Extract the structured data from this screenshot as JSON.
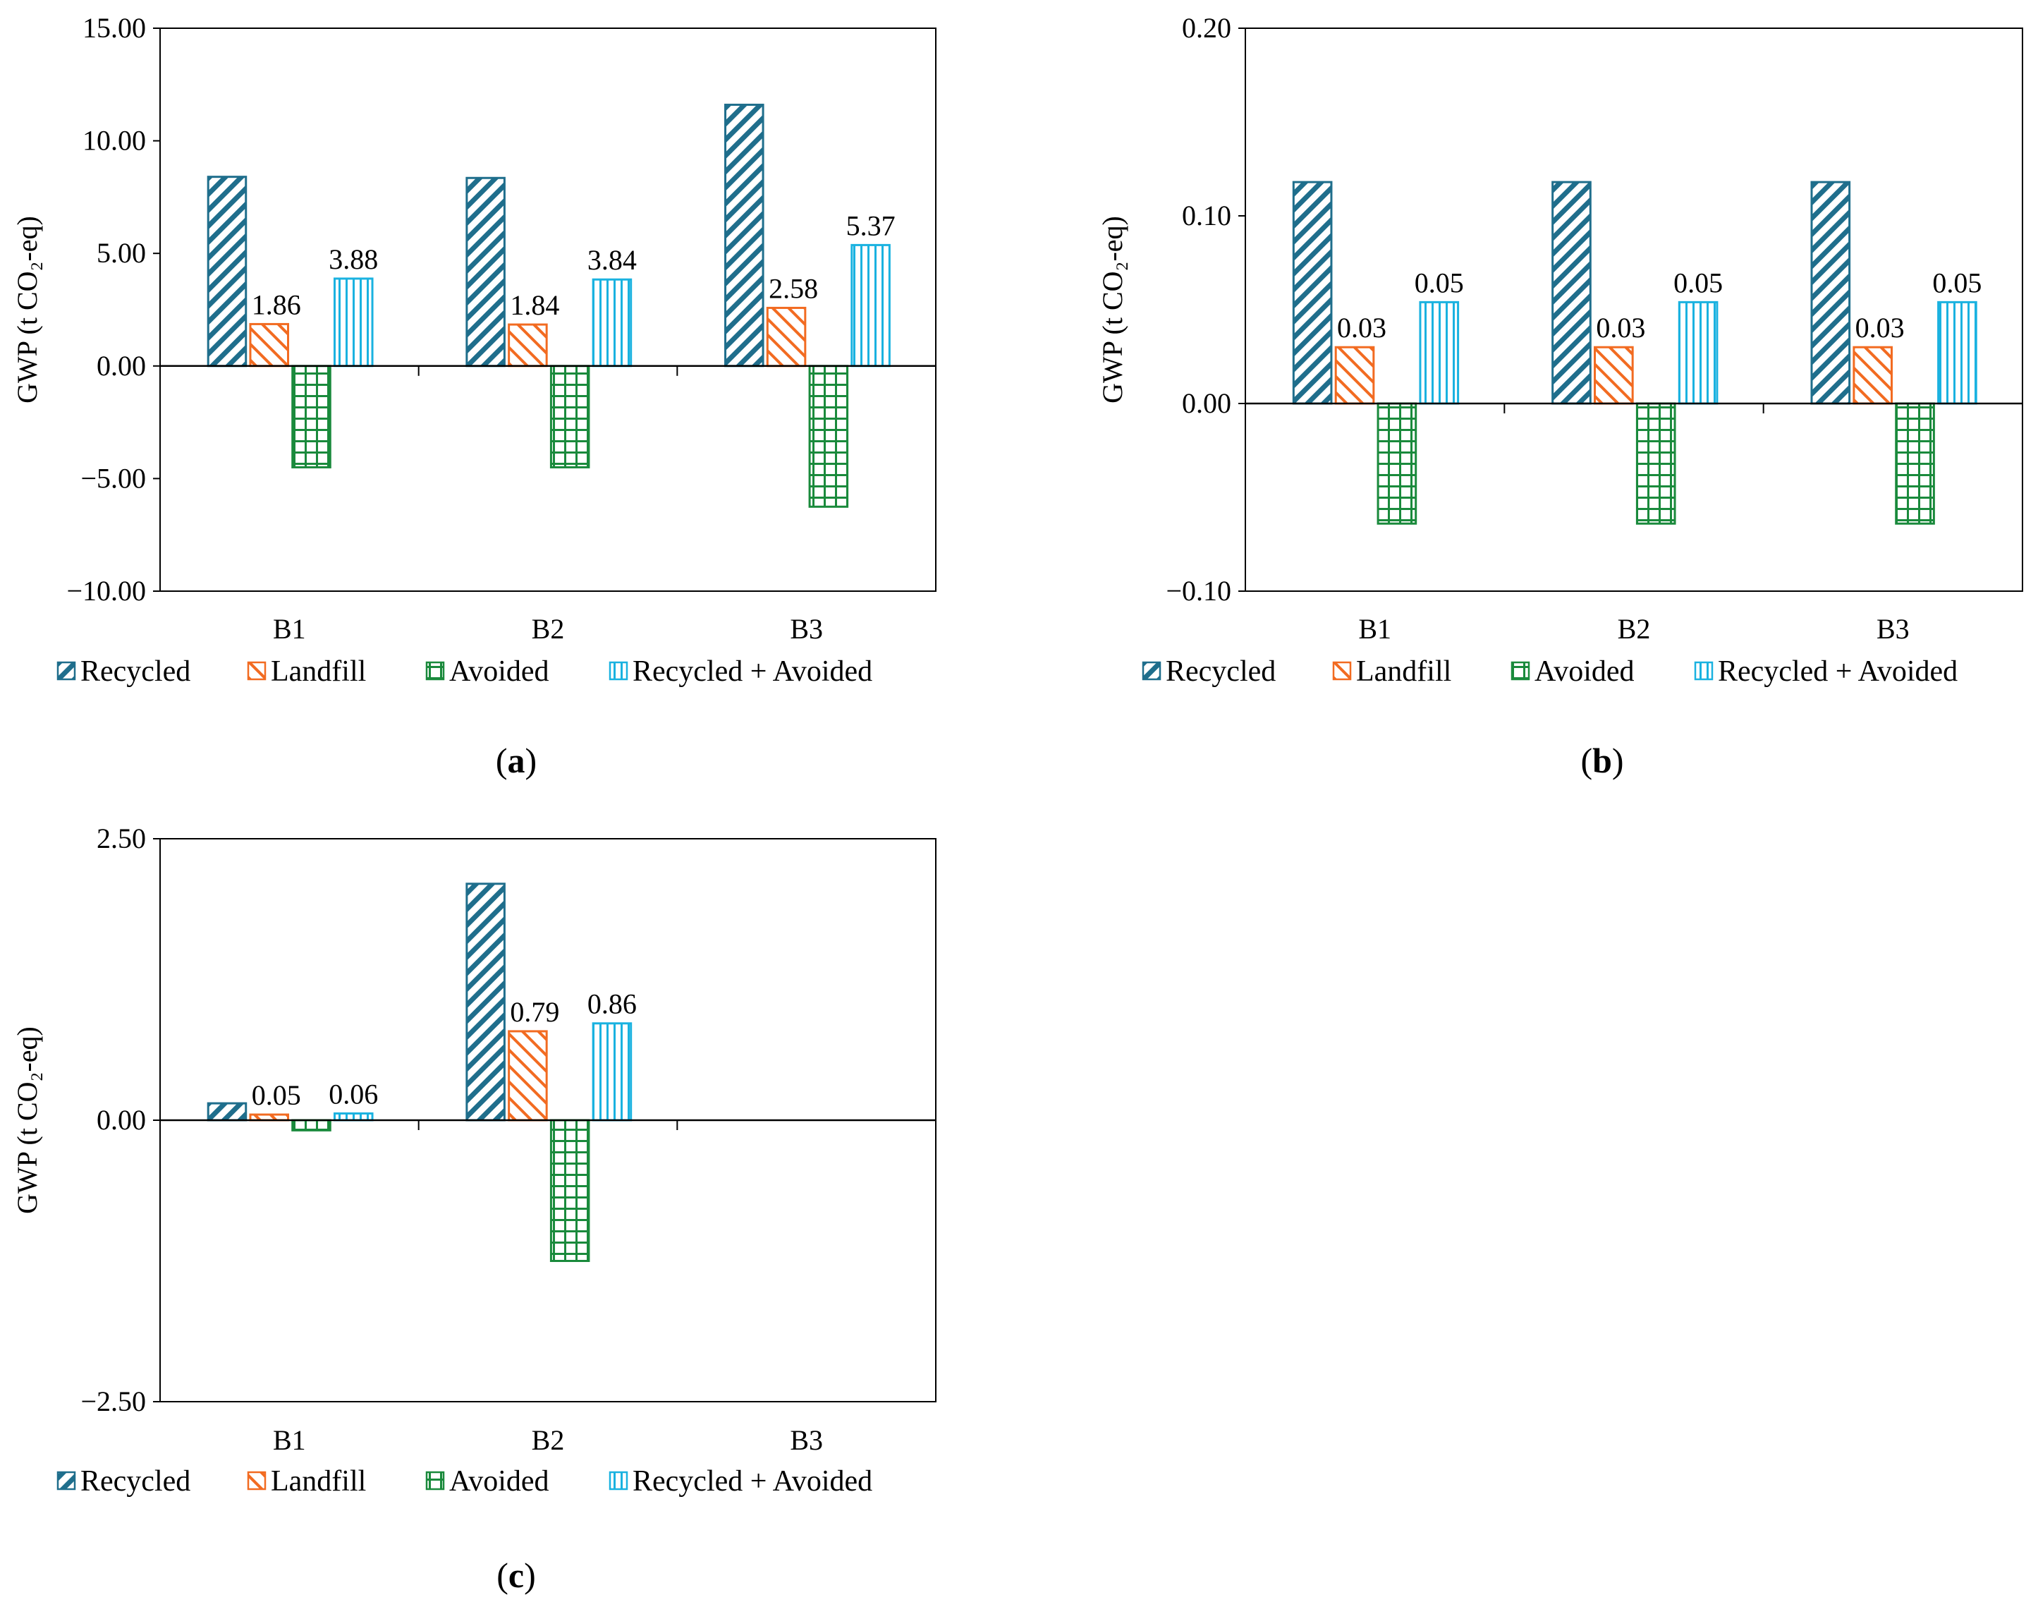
{
  "colors": {
    "Recycled": "#1f6e8c",
    "Landfill": "#f26b21",
    "Avoided": "#1a8a3c",
    "Recycled + Avoided": "#1ab2e0"
  },
  "chart_data": [
    {
      "id": "a",
      "type": "bar",
      "caption": "a",
      "ylabel": "GWP (t CO₂-eq)",
      "xlabel": "",
      "ylim": [
        -10,
        15
      ],
      "yticks": [
        -10,
        -5,
        0,
        5,
        10,
        15
      ],
      "ytick_labels": [
        "−10.00",
        "−5.00",
        "0.00",
        "5.00",
        "10.00",
        "15.00"
      ],
      "categories": [
        "B1",
        "B2",
        "B3"
      ],
      "series": [
        {
          "name": "Recycled",
          "values": [
            8.4,
            8.35,
            11.6
          ],
          "labels": [
            null,
            null,
            null
          ]
        },
        {
          "name": "Landfill",
          "values": [
            1.86,
            1.84,
            2.58
          ],
          "labels": [
            "1.86",
            "1.84",
            "2.58"
          ]
        },
        {
          "name": "Avoided",
          "values": [
            -4.5,
            -4.5,
            -6.25
          ],
          "labels": [
            null,
            null,
            null
          ]
        },
        {
          "name": "Recycled + Avoided",
          "values": [
            3.88,
            3.84,
            5.37
          ],
          "labels": [
            "3.88",
            "3.84",
            "5.37"
          ]
        }
      ],
      "legend": "bottom"
    },
    {
      "id": "b",
      "type": "bar",
      "caption": "b",
      "ylabel": "GWP (t CO₂-eq)",
      "xlabel": "",
      "ylim": [
        -0.1,
        0.2
      ],
      "yticks": [
        -0.1,
        0,
        0.1,
        0.2
      ],
      "ytick_labels": [
        "−0.10",
        "0.00",
        "0.10",
        "0.20"
      ],
      "categories": [
        "B1",
        "B2",
        "B3"
      ],
      "series": [
        {
          "name": "Recycled",
          "values": [
            0.118,
            0.118,
            0.118
          ],
          "labels": [
            null,
            null,
            null
          ]
        },
        {
          "name": "Landfill",
          "values": [
            0.03,
            0.03,
            0.03
          ],
          "labels": [
            "0.03",
            "0.03",
            "0.03"
          ]
        },
        {
          "name": "Avoided",
          "values": [
            -0.064,
            -0.064,
            -0.064
          ],
          "labels": [
            null,
            null,
            null
          ]
        },
        {
          "name": "Recycled + Avoided",
          "values": [
            0.054,
            0.054,
            0.054
          ],
          "labels": [
            "0.05",
            "0.05",
            "0.05"
          ]
        }
      ],
      "legend": "bottom"
    },
    {
      "id": "c",
      "type": "bar",
      "caption": "c",
      "ylabel": "GWP (t CO₂-eq)",
      "xlabel": "",
      "ylim": [
        -2.5,
        2.5
      ],
      "yticks": [
        -2.5,
        0,
        2.5
      ],
      "ytick_labels": [
        "−2.50",
        "0.00",
        "2.50"
      ],
      "categories": [
        "B1",
        "B2",
        "B3"
      ],
      "series": [
        {
          "name": "Recycled",
          "values": [
            0.15,
            2.1,
            null
          ],
          "labels": [
            null,
            null,
            null
          ]
        },
        {
          "name": "Landfill",
          "values": [
            0.05,
            0.79,
            null
          ],
          "labels": [
            "0.05",
            "0.79",
            null
          ]
        },
        {
          "name": "Avoided",
          "values": [
            -0.09,
            -1.25,
            null
          ],
          "labels": [
            null,
            null,
            null
          ]
        },
        {
          "name": "Recycled + Avoided",
          "values": [
            0.06,
            0.86,
            null
          ],
          "labels": [
            "0.06",
            "0.86",
            null
          ]
        }
      ],
      "legend": "bottom"
    }
  ]
}
